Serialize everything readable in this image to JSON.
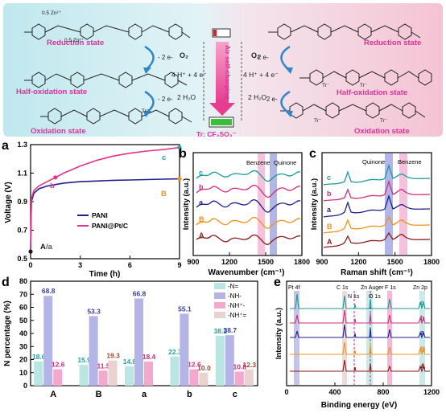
{
  "scheme": {
    "left_states": [
      "Reduction state",
      "Half-oxidation state",
      "Oxidation state"
    ],
    "right_states": [
      "Reduction state",
      "Half-oxidation state",
      "Oxidation state"
    ],
    "zn_top": "0.5 Zn²⁺",
    "zn_bottom": "0.5 Zn²⁺",
    "electrons": "- 2 e-",
    "o2": "O₂",
    "reaction_top": "4 H⁺ + 4 e⁻",
    "reaction_bottom": "2 H₂O",
    "center_label": "Air self-charging",
    "tr_label": "Tr: CF₃SO₃⁻",
    "tr": "Tr⁻",
    "colors": {
      "bg_left": "#c8ecef",
      "bg_right": "#f4c9d6",
      "state_left": "#e0309a",
      "state_right": "#e0309a",
      "arrow": "#2f86c8"
    }
  },
  "panels": {
    "a": {
      "letter": "a",
      "xlabel": "Time (h)",
      "ylabel": "Voltage (V)",
      "xticks": [
        "0",
        "3",
        "6",
        "9"
      ],
      "yticks": [
        "0.5",
        "0.7",
        "0.9",
        "1.1",
        "1.3"
      ],
      "legend": [
        "PANI",
        "PANI@Pt/C"
      ],
      "labels": {
        "A": "A",
        "a": "/a",
        "b": "b",
        "B": "B",
        "c": "c"
      }
    },
    "b": {
      "letter": "b",
      "xlabel": "Wavenumber (cm⁻¹)",
      "ylabel": "Intensity (a.u.)",
      "xticks": [
        "900",
        "1200",
        "1500",
        "1800"
      ],
      "bands": [
        "Benzene",
        "Quinone"
      ],
      "traces": [
        "c",
        "b",
        "a",
        "B",
        "A"
      ]
    },
    "c": {
      "letter": "c",
      "xlabel": "Raman shift (cm⁻¹)",
      "ylabel": "Intensity (a.u.)",
      "xticks": [
        "900",
        "1200",
        "1500",
        "1800"
      ],
      "bands": [
        "Quinone",
        "Benzene"
      ],
      "traces": [
        "c",
        "b",
        "a",
        "B",
        "A"
      ]
    },
    "d": {
      "letter": "d",
      "ylabel": "N percentage (%)",
      "yticks": [
        "0",
        "10",
        "20",
        "30",
        "40",
        "50",
        "60",
        "70",
        "80"
      ],
      "legend": [
        "-N=",
        "-NH-",
        "-NH⁺-",
        "-NH⁺="
      ]
    },
    "e": {
      "letter": "e",
      "xlabel": "Binding energy (eV)",
      "ylabel": "Intensity (a.u.)",
      "xticks": [
        "0",
        "400",
        "800",
        "1200"
      ],
      "peaks": [
        "Pt 4f",
        "C 1s",
        "N 1s",
        "Zn Auger",
        "O 1s",
        "F 1s",
        "Zn 2p"
      ],
      "traces": [
        "c",
        "b",
        "a",
        "B",
        "A"
      ]
    }
  },
  "chart_data": [
    {
      "type": "line",
      "title": "",
      "xlabel": "Time (h)",
      "ylabel": "Voltage (V)",
      "xlim": [
        0,
        9
      ],
      "ylim": [
        0.5,
        1.3
      ],
      "series": [
        {
          "name": "PANI",
          "color": "#1f1f8f",
          "x": [
            0,
            0.05,
            0.2,
            0.5,
            1,
            2,
            3,
            4,
            5,
            6,
            7,
            8,
            9
          ],
          "y": [
            0.55,
            0.9,
            0.96,
            0.99,
            1.01,
            1.03,
            1.04,
            1.045,
            1.05,
            1.052,
            1.055,
            1.058,
            1.06
          ]
        },
        {
          "name": "PANI@Pt/C",
          "color": "#e3338e",
          "x": [
            0,
            0.05,
            0.2,
            0.5,
            1,
            1.5,
            2,
            3,
            4,
            5,
            6,
            7,
            8,
            9
          ],
          "y": [
            0.55,
            0.92,
            0.98,
            1.01,
            1.04,
            1.07,
            1.1,
            1.15,
            1.19,
            1.22,
            1.24,
            1.255,
            1.265,
            1.28
          ]
        }
      ],
      "markers": [
        {
          "label": "A",
          "x": 0,
          "y": 0.55,
          "color": "#1a1a1a"
        },
        {
          "label": "b",
          "x": 1.5,
          "y": 1.07,
          "color": "#e3338e"
        },
        {
          "label": "B",
          "x": 9,
          "y": 1.06,
          "color": "#f39019"
        },
        {
          "label": "c",
          "x": 9,
          "y": 1.28,
          "color": "#2aa3a3"
        }
      ]
    },
    {
      "type": "bar",
      "title": "",
      "ylabel": "N percentage (%)",
      "ylim": [
        0,
        80
      ],
      "categories": [
        "A",
        "B",
        "a",
        "b",
        "c"
      ],
      "series": [
        {
          "name": "-N=",
          "color": "#b9e6e3",
          "values": [
            18.6,
            15.9,
            14.8,
            22.3,
            38.2
          ]
        },
        {
          "name": "-NH-",
          "color": "#b4b4e6",
          "values": [
            68.8,
            53.3,
            66.8,
            55.1,
            38.7
          ]
        },
        {
          "name": "-NH⁺-",
          "color": "#f3a8cd",
          "values": [
            12.6,
            11.5,
            18.4,
            12.6,
            10.8
          ]
        },
        {
          "name": "-NH⁺=",
          "color": "#e9d2cf",
          "values": [
            null,
            19.3,
            null,
            10.0,
            12.3
          ]
        }
      ],
      "label_colors": [
        "#1f9f9f",
        "#3a3a9f",
        "#d42a7d",
        "#a04830"
      ]
    }
  ]
}
